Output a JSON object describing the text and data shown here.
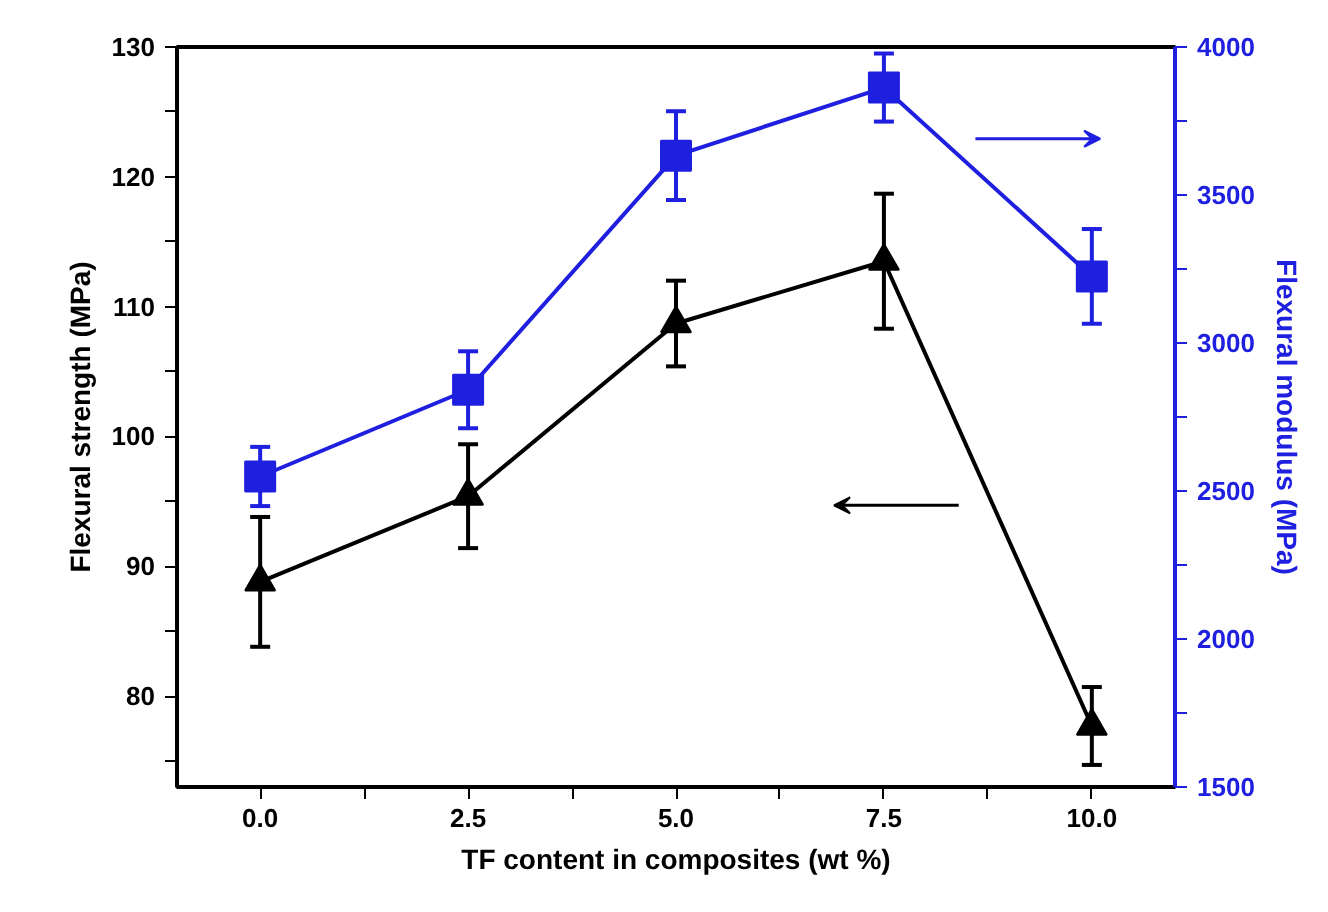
{
  "chart_data": {
    "type": "line",
    "xlabel": "TF content in composites (wt %)",
    "ylabel": "Flexural strength (MPa)",
    "y2label": "Flexural modulus (MPa)",
    "x": [
      0,
      2.5,
      5,
      7.5,
      10
    ],
    "series": [
      {
        "color": "#000000",
        "marker": "triangle",
        "values": [
          88.8,
          95.4,
          108.7,
          113.5,
          77.7
        ],
        "errors": [
          5,
          4,
          3.3,
          5.2,
          3
        ]
      },
      {
        "color": "#1f1fe0",
        "marker": "square",
        "axis": "y2",
        "values": [
          2549,
          2842,
          3633,
          3863,
          3225
        ],
        "errors": [
          100,
          130,
          150,
          115,
          160
        ]
      }
    ],
    "xlim": [
      -1,
      11
    ],
    "xticks": [
      {
        "value": 0,
        "label": "0.0"
      },
      {
        "value": 1.25,
        "label": null
      },
      {
        "value": 2.5,
        "label": "2.5"
      },
      {
        "value": 3.75,
        "label": null
      },
      {
        "value": 5,
        "label": "5.0"
      },
      {
        "value": 6.25,
        "label": null
      },
      {
        "value": 7.5,
        "label": "7.5"
      },
      {
        "value": 8.75,
        "label": null
      },
      {
        "value": 10,
        "label": "10.0"
      }
    ],
    "ylim": [
      73,
      130
    ],
    "yticks": [
      {
        "value": 75,
        "label": null
      },
      80,
      {
        "value": 85,
        "label": null
      },
      90,
      {
        "value": 95,
        "label": null
      },
      100,
      {
        "value": 105,
        "label": null
      },
      110,
      {
        "value": 115,
        "label": null
      },
      120,
      {
        "value": 125,
        "label": null
      },
      130
    ],
    "y2lim": [
      1500,
      4000
    ],
    "y2ticks": [
      1500,
      {
        "value": 1750,
        "label": null
      },
      2000,
      {
        "value": 2250,
        "label": null
      },
      2500,
      {
        "value": 2750,
        "label": null
      },
      3000,
      {
        "value": 3250,
        "label": null
      },
      3500,
      {
        "value": 3750,
        "label": null
      },
      4000
    ],
    "grid": false,
    "line_style": "solid"
  }
}
